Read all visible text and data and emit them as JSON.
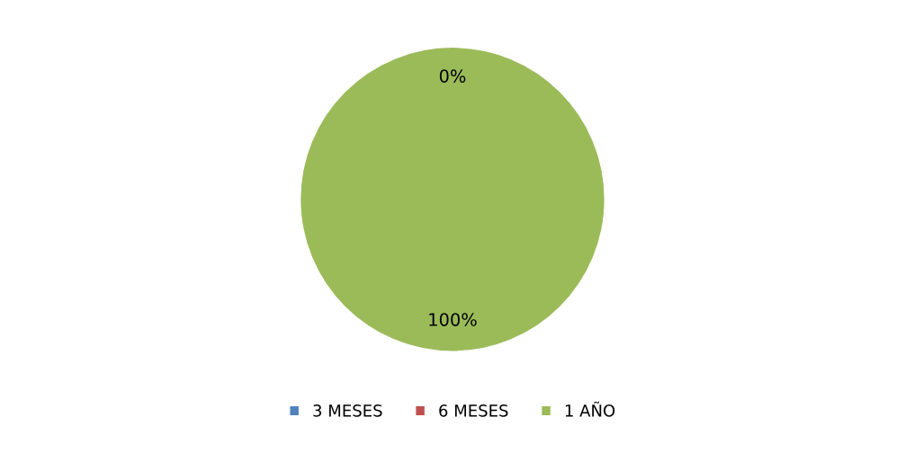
{
  "chart_data": {
    "type": "pie",
    "categories": [
      "3 MESES",
      "6 MESES",
      "1 AÑO"
    ],
    "values": [
      0,
      0,
      100
    ],
    "colors": [
      "#4f81bd",
      "#c0504d",
      "#9bbb59"
    ],
    "value_labels": [
      "0%",
      null,
      "100%"
    ],
    "legend": "bottom"
  }
}
